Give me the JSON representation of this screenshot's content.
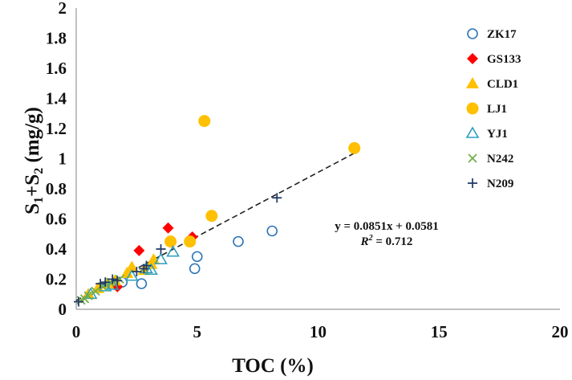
{
  "chart_data": {
    "type": "scatter",
    "title": "",
    "xlabel": "TOC (%)",
    "ylabel": {
      "main": "S",
      "sub1": "1",
      "plus": "+S",
      "sub2": "2",
      "unit": " (mg/g)"
    },
    "xlim": [
      0,
      20
    ],
    "ylim": [
      0,
      2
    ],
    "x_ticks": [
      "0",
      "5",
      "10",
      "15",
      "20"
    ],
    "y_ticks": [
      "0",
      "0.2",
      "0.4",
      "0.6",
      "0.8",
      "1",
      "1.2",
      "1.4",
      "1.6",
      "1.8",
      "2"
    ],
    "grid": false,
    "legend_position": "right",
    "series": [
      {
        "name": "ZK17",
        "marker": "circle-open",
        "color": "#2e75b6",
        "points": [
          [
            1.9,
            0.18
          ],
          [
            2.7,
            0.17
          ],
          [
            4.9,
            0.27
          ],
          [
            5.0,
            0.35
          ],
          [
            6.7,
            0.45
          ],
          [
            8.1,
            0.52
          ]
        ]
      },
      {
        "name": "GS133",
        "marker": "diamond",
        "color": "#ff0000",
        "points": [
          [
            1.7,
            0.15
          ],
          [
            2.6,
            0.39
          ],
          [
            3.8,
            0.54
          ],
          [
            4.8,
            0.48
          ]
        ]
      },
      {
        "name": "CLD1",
        "marker": "triangle",
        "color": "#ffc000",
        "points": [
          [
            0.5,
            0.1
          ],
          [
            0.9,
            0.14
          ],
          [
            1.3,
            0.17
          ],
          [
            1.6,
            0.19
          ],
          [
            2.1,
            0.24
          ],
          [
            2.3,
            0.28
          ],
          [
            2.8,
            0.26
          ],
          [
            3.1,
            0.3
          ],
          [
            3.2,
            0.33
          ]
        ]
      },
      {
        "name": "LJ1",
        "marker": "circle",
        "color": "#ffc000",
        "points": [
          [
            3.9,
            0.45
          ],
          [
            4.7,
            0.45
          ],
          [
            5.3,
            1.25
          ],
          [
            5.6,
            0.62
          ],
          [
            11.5,
            1.07
          ]
        ]
      },
      {
        "name": "YJ1",
        "marker": "triangle-open",
        "color": "#2e9fbd",
        "points": [
          [
            0.6,
            0.1
          ],
          [
            1.2,
            0.15
          ],
          [
            1.5,
            0.16
          ],
          [
            2.3,
            0.22
          ],
          [
            2.9,
            0.27
          ],
          [
            3.1,
            0.26
          ],
          [
            3.5,
            0.33
          ],
          [
            4.0,
            0.38
          ]
        ]
      },
      {
        "name": "N242",
        "marker": "x",
        "color": "#70ad47",
        "points": [
          [
            0.2,
            0.06
          ],
          [
            0.35,
            0.07
          ],
          [
            0.5,
            0.09
          ],
          [
            0.8,
            0.12
          ],
          [
            1.1,
            0.15
          ],
          [
            1.4,
            0.18
          ],
          [
            1.8,
            0.2
          ]
        ]
      },
      {
        "name": "N209",
        "marker": "plus",
        "color": "#1f3864",
        "points": [
          [
            0.1,
            0.05
          ],
          [
            1.0,
            0.17
          ],
          [
            1.2,
            0.18
          ],
          [
            1.5,
            0.2
          ],
          [
            1.7,
            0.19
          ],
          [
            2.5,
            0.25
          ],
          [
            2.8,
            0.27
          ],
          [
            2.9,
            0.29
          ],
          [
            3.5,
            0.4
          ],
          [
            8.3,
            0.74
          ]
        ]
      }
    ],
    "trendline": {
      "slope": 0.0851,
      "intercept": 0.0581,
      "x_range": [
        0,
        11.5
      ],
      "style": "dashed",
      "color": "#222222"
    },
    "annotation": {
      "equation": "y = 0.0851x + 0.0581",
      "r2_label": "R",
      "r2_sup": "2",
      "r2_value": " = 0.712"
    }
  }
}
